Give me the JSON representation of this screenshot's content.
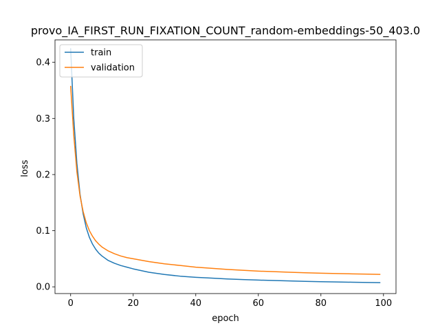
{
  "chart_data": {
    "type": "line",
    "title": "provo_IA_FIRST_RUN_FIXATION_COUNT_random-embeddings-50_403.0",
    "xlabel": "epoch",
    "ylabel": "loss",
    "xlim": [
      -5,
      104
    ],
    "ylim": [
      -0.012,
      0.44
    ],
    "xticks": [
      0,
      20,
      40,
      60,
      80,
      100
    ],
    "yticks": [
      0.0,
      0.1,
      0.2,
      0.3,
      0.4
    ],
    "ytick_labels": [
      "0.0",
      "0.1",
      "0.2",
      "0.3",
      "0.4"
    ],
    "grid": false,
    "legend_position": "top-left",
    "series": [
      {
        "name": "train",
        "color": "#1f77b4",
        "x": [
          0,
          1,
          2,
          3,
          4,
          5,
          6,
          7,
          8,
          9,
          10,
          12,
          14,
          16,
          18,
          20,
          25,
          30,
          35,
          40,
          45,
          50,
          55,
          60,
          65,
          70,
          75,
          80,
          85,
          90,
          95,
          99
        ],
        "values": [
          0.425,
          0.3,
          0.22,
          0.165,
          0.13,
          0.105,
          0.088,
          0.076,
          0.067,
          0.06,
          0.055,
          0.047,
          0.042,
          0.038,
          0.035,
          0.032,
          0.026,
          0.022,
          0.019,
          0.017,
          0.0155,
          0.014,
          0.013,
          0.012,
          0.0112,
          0.0105,
          0.0098,
          0.0092,
          0.0087,
          0.0082,
          0.0078,
          0.0075
        ]
      },
      {
        "name": "validation",
        "color": "#ff7f0e",
        "x": [
          0,
          1,
          2,
          3,
          4,
          5,
          6,
          7,
          8,
          9,
          10,
          12,
          14,
          16,
          18,
          20,
          25,
          30,
          35,
          40,
          45,
          50,
          55,
          60,
          65,
          70,
          75,
          80,
          85,
          90,
          95,
          99
        ],
        "values": [
          0.358,
          0.27,
          0.205,
          0.162,
          0.134,
          0.114,
          0.1,
          0.09,
          0.082,
          0.076,
          0.071,
          0.064,
          0.059,
          0.055,
          0.052,
          0.05,
          0.045,
          0.041,
          0.038,
          0.035,
          0.033,
          0.031,
          0.0295,
          0.028,
          0.027,
          0.026,
          0.025,
          0.0243,
          0.0237,
          0.0231,
          0.0226,
          0.0222
        ]
      }
    ]
  }
}
